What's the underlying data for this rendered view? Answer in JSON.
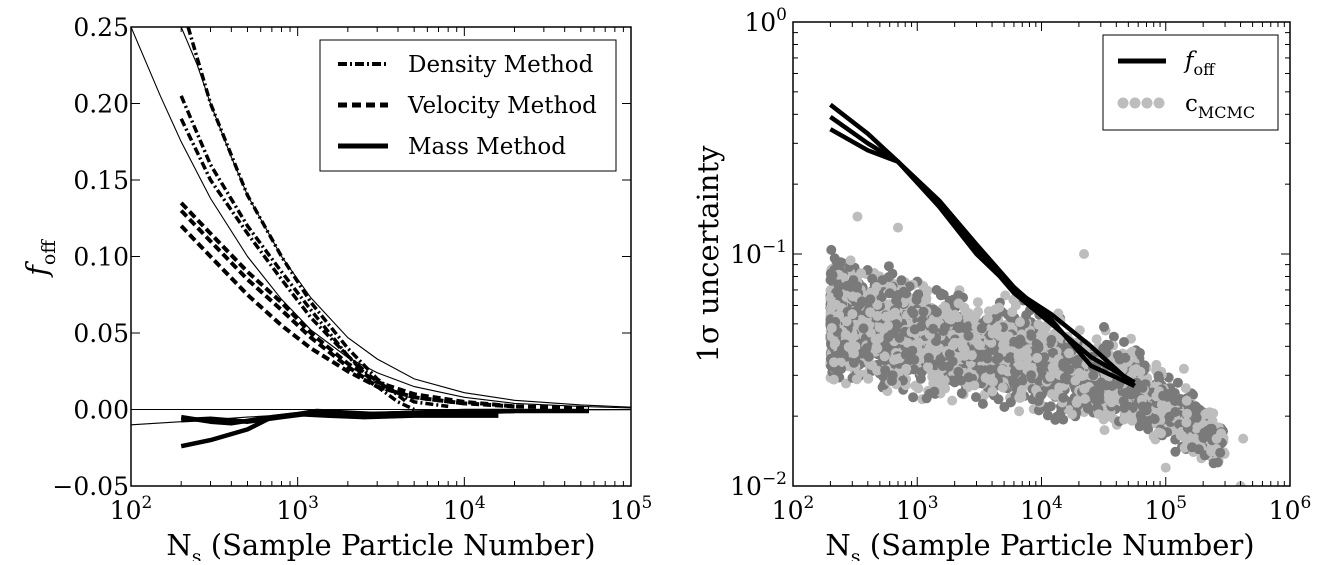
{
  "chart_data": [
    {
      "type": "line",
      "xscale": "log",
      "xlim": [
        100,
        100000
      ],
      "ylim": [
        -0.05,
        0.25
      ],
      "xlabel": "N_s (Sample Particle Number)",
      "xlabel_main": "N",
      "xlabel_sub": "s",
      "xlabel_rest": " (Sample Particle Number)",
      "ylabel": "f_off",
      "ylabel_main": "f",
      "ylabel_sub": "off",
      "xticks": [
        {
          "value": 100,
          "base": "10",
          "exp": "2"
        },
        {
          "value": 1000,
          "base": "10",
          "exp": "3"
        },
        {
          "value": 10000,
          "base": "10",
          "exp": "4"
        },
        {
          "value": 100000,
          "base": "10",
          "exp": "5"
        }
      ],
      "yticks": [
        {
          "value": -0.05,
          "label": "−0.05"
        },
        {
          "value": 0.0,
          "label": "0.00"
        },
        {
          "value": 0.05,
          "label": "0.05"
        },
        {
          "value": 0.1,
          "label": "0.10"
        },
        {
          "value": 0.15,
          "label": "0.15"
        },
        {
          "value": 0.2,
          "label": "0.20"
        },
        {
          "value": 0.25,
          "label": "0.25"
        }
      ],
      "legend_position": "top-right",
      "legend": [
        {
          "label": "Density Method",
          "style": "dashdot"
        },
        {
          "label": "Velocity Method",
          "style": "dashed"
        },
        {
          "label": "Mass Method",
          "style": "solid"
        }
      ],
      "series": [
        {
          "name": "Density Method",
          "style": "dashdot",
          "x": [
            200,
            300,
            500,
            800,
            1200,
            2000,
            3000,
            4000,
            5000
          ],
          "y": [
            0.205,
            0.16,
            0.12,
            0.09,
            0.065,
            0.035,
            0.015,
            0.005,
            0.0
          ]
        },
        {
          "name": "Density Method",
          "style": "dashdot",
          "x": [
            220,
            300,
            500,
            800,
            1200,
            2000,
            3000,
            4500
          ],
          "y": [
            0.25,
            0.2,
            0.14,
            0.1,
            0.07,
            0.04,
            0.02,
            0.005
          ]
        },
        {
          "name": "Density Method",
          "style": "dashdot",
          "x": [
            200,
            300,
            500,
            800,
            1200,
            2000,
            3000,
            5000,
            8000
          ],
          "y": [
            0.19,
            0.15,
            0.115,
            0.085,
            0.06,
            0.035,
            0.018,
            0.005,
            0.002
          ]
        },
        {
          "name": "Velocity Method",
          "style": "dashed",
          "x": [
            200,
            300,
            500,
            800,
            1200,
            2000,
            3000,
            5000,
            10000,
            20000,
            56000
          ],
          "y": [
            0.135,
            0.115,
            0.09,
            0.07,
            0.05,
            0.03,
            0.018,
            0.01,
            0.005,
            0.002,
            0.001
          ]
        },
        {
          "name": "Velocity Method",
          "style": "dashed",
          "x": [
            200,
            300,
            500,
            800,
            1200,
            2000,
            3000,
            5000,
            10000,
            20000
          ],
          "y": [
            0.13,
            0.11,
            0.085,
            0.065,
            0.047,
            0.028,
            0.015,
            0.008,
            0.004,
            0.002
          ]
        },
        {
          "name": "Velocity Method",
          "style": "dashed",
          "x": [
            200,
            300,
            500,
            800,
            1200,
            2000,
            3000,
            5000,
            10000
          ],
          "y": [
            0.12,
            0.1,
            0.075,
            0.055,
            0.04,
            0.025,
            0.015,
            0.008,
            0.004
          ]
        },
        {
          "name": "Mass Method",
          "style": "solid",
          "x": [
            200,
            300,
            400,
            600,
            1000,
            1300,
            2000,
            3000,
            5000,
            10000,
            20000,
            56000
          ],
          "y": [
            -0.005,
            -0.008,
            -0.009,
            -0.006,
            -0.003,
            -0.001,
            -0.002,
            -0.003,
            -0.002,
            -0.002,
            -0.001,
            -0.001
          ]
        },
        {
          "name": "Mass Method",
          "style": "solid",
          "x": [
            200,
            300,
            500,
            800,
            1300,
            2000,
            3000,
            5000,
            10000,
            20000
          ],
          "y": [
            -0.007,
            -0.006,
            -0.008,
            -0.005,
            -0.002,
            -0.004,
            -0.003,
            -0.002,
            -0.001,
            -0.001
          ]
        },
        {
          "name": "Mass Method",
          "style": "solid",
          "x": [
            200,
            300,
            500,
            700,
            1000,
            1500,
            2500,
            5000,
            10000,
            16000
          ],
          "y": [
            -0.024,
            -0.02,
            -0.013,
            -0.005,
            -0.003,
            -0.004,
            -0.005,
            -0.004,
            -0.004,
            -0.004
          ]
        }
      ],
      "fit_curves": [
        {
          "x": [
            100,
            150,
            200,
            300,
            500,
            800,
            1200,
            2000,
            3000,
            5000,
            10000,
            20000,
            50000,
            100000
          ],
          "y": [
            0.25,
            0.205,
            0.175,
            0.138,
            0.1,
            0.072,
            0.052,
            0.034,
            0.024,
            0.015,
            0.008,
            0.004,
            0.002,
            0.001
          ]
        },
        {
          "x": [
            200,
            250,
            300,
            400,
            500,
            800,
            1200,
            2000,
            3000,
            5000,
            10000,
            20000,
            50000,
            100000
          ],
          "y": [
            0.25,
            0.225,
            0.2,
            0.165,
            0.14,
            0.1,
            0.073,
            0.047,
            0.033,
            0.02,
            0.011,
            0.006,
            0.003,
            0.0015
          ]
        },
        {
          "x": [
            100,
            200,
            500,
            1000,
            2000,
            5000,
            10000,
            20000,
            50000,
            100000
          ],
          "y": [
            -0.01,
            -0.008,
            -0.005,
            -0.003,
            -0.002,
            -0.0012,
            -0.0007,
            -0.0004,
            -0.0002,
            -0.0001
          ]
        }
      ]
    },
    {
      "type": "scatter",
      "xscale": "log",
      "yscale": "log",
      "xlim": [
        100,
        1000000
      ],
      "ylim": [
        0.01,
        1
      ],
      "xlabel": "N_s (Sample Particle Number)",
      "xlabel_main": "N",
      "xlabel_sub": "s",
      "xlabel_rest": " (Sample Particle Number)",
      "ylabel": "1σ uncertainty",
      "xticks": [
        {
          "value": 100,
          "base": "10",
          "exp": "2"
        },
        {
          "value": 1000,
          "base": "10",
          "exp": "3"
        },
        {
          "value": 10000,
          "base": "10",
          "exp": "4"
        },
        {
          "value": 100000,
          "base": "10",
          "exp": "5"
        },
        {
          "value": 1000000,
          "base": "10",
          "exp": "6"
        }
      ],
      "yticks": [
        {
          "value": 0.01,
          "base": "10",
          "exp": "−2"
        },
        {
          "value": 0.1,
          "base": "10",
          "exp": "−1"
        },
        {
          "value": 1,
          "base": "10",
          "exp": "0"
        }
      ],
      "legend_position": "top-right",
      "legend": [
        {
          "label": "f_off",
          "main": "f",
          "sub": "off",
          "style": "line"
        },
        {
          "label": "c_MCMC",
          "main": "c",
          "sub": "MCMC",
          "style": "markers"
        }
      ],
      "colors": {
        "line": "#000000",
        "scatter_dark": "#7a7a7a",
        "scatter_light": "#bdbdbd"
      },
      "series": [
        {
          "name": "f_off",
          "style": "line",
          "x": [
            200,
            400,
            700,
            1500,
            3000,
            6000,
            12000,
            25000,
            56000
          ],
          "y": [
            0.44,
            0.33,
            0.25,
            0.16,
            0.1,
            0.07,
            0.055,
            0.04,
            0.027
          ]
        },
        {
          "name": "f_off",
          "style": "line",
          "x": [
            200,
            400,
            700,
            1500,
            3000,
            6000,
            12000,
            25000,
            56000
          ],
          "y": [
            0.39,
            0.3,
            0.25,
            0.165,
            0.105,
            0.068,
            0.05,
            0.036,
            0.028
          ]
        },
        {
          "name": "f_off",
          "style": "line",
          "x": [
            200,
            400,
            700,
            1500,
            3000,
            6000,
            12000,
            25000,
            56000
          ],
          "y": [
            0.345,
            0.28,
            0.25,
            0.17,
            0.11,
            0.072,
            0.052,
            0.033,
            0.027
          ]
        }
      ],
      "scatter": {
        "name": "c_MCMC",
        "density_profile": [
          {
            "x": 200,
            "y_low": 0.025,
            "y_high": 0.11
          },
          {
            "x": 1000,
            "y_low": 0.021,
            "y_high": 0.095
          },
          {
            "x": 10000,
            "y_low": 0.018,
            "y_high": 0.065
          },
          {
            "x": 60000,
            "y_low": 0.015,
            "y_high": 0.045
          },
          {
            "x": 300000,
            "y_low": 0.011,
            "y_high": 0.02
          }
        ],
        "outliers": [
          {
            "x": 22000,
            "y": 0.1
          },
          {
            "x": 330,
            "y": 0.145
          },
          {
            "x": 700,
            "y": 0.13
          },
          {
            "x": 140000,
            "y": 0.032
          },
          {
            "x": 100000,
            "y": 0.012
          },
          {
            "x": 400000,
            "y": 0.01
          },
          {
            "x": 420000,
            "y": 0.016
          }
        ]
      }
    }
  ]
}
